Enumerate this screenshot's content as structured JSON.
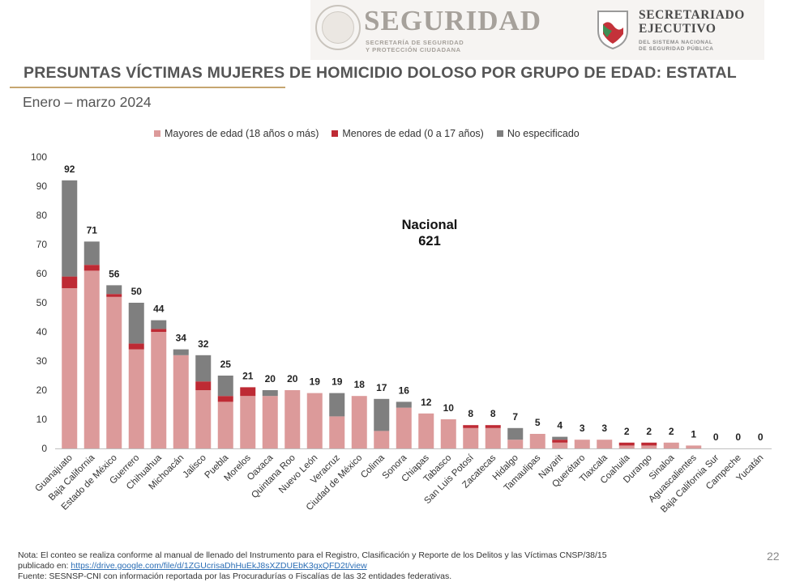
{
  "header": {
    "seguridad_title": "SEGURIDAD",
    "seguridad_sub1": "SECRETARÍA DE SEGURIDAD",
    "seguridad_sub2": "Y PROTECCIÓN CIUDADANA",
    "se_title1": "SECRETARIADO",
    "se_title2": "EJECUTIVO",
    "se_sub1": "DEL SISTEMA NACIONAL",
    "se_sub2": "DE SEGURIDAD PÚBLICA"
  },
  "title": "PRESUNTAS VÍCTIMAS MUJERES DE HOMICIDIO DOLOSO POR GRUPO DE EDAD: ESTATAL",
  "subtitle": "Enero – marzo 2024",
  "nacional": {
    "label": "Nacional",
    "value": "621"
  },
  "colors": {
    "mayores": "#dc9a9a",
    "menores": "#be2a34",
    "no_especificado": "#7f7f7f",
    "accent": "#c6a670"
  },
  "chart_data": {
    "type": "bar",
    "stacked": true,
    "ylim": [
      0,
      100
    ],
    "yticks": [
      0,
      10,
      20,
      30,
      40,
      50,
      60,
      70,
      80,
      90,
      100
    ],
    "legend_position": "top",
    "grid": false,
    "categories": [
      "Guanajuato",
      "Baja California",
      "Estado de México",
      "Guerrero",
      "Chihuahua",
      "Michoacán",
      "Jalisco",
      "Puebla",
      "Morelos",
      "Oaxaca",
      "Quintana Roo",
      "Nuevo León",
      "Veracruz",
      "Ciudad de México",
      "Colima",
      "Sonora",
      "Chiapas",
      "Tabasco",
      "San Luis Potosí",
      "Zacatecas",
      "Hidalgo",
      "Tamaulipas",
      "Nayarit",
      "Querétaro",
      "Tlaxcala",
      "Coahuila",
      "Durango",
      "Sinaloa",
      "Aguascalientes",
      "Baja California Sur",
      "Campeche",
      "Yucatán"
    ],
    "series": [
      {
        "name": "Mayores de edad (18 años o más)",
        "color": "#dc9a9a",
        "values": [
          55,
          61,
          52,
          34,
          40,
          32,
          20,
          16,
          18,
          18,
          20,
          19,
          11,
          18,
          6,
          14,
          12,
          10,
          7,
          7,
          3,
          5,
          2,
          3,
          3,
          1,
          1,
          2,
          1,
          0,
          0,
          0
        ]
      },
      {
        "name": "Menores de edad (0 a 17 años)",
        "color": "#be2a34",
        "values": [
          4,
          2,
          1,
          2,
          1,
          0,
          3,
          2,
          3,
          0,
          0,
          0,
          0,
          0,
          0,
          0,
          0,
          0,
          1,
          1,
          0,
          0,
          1,
          0,
          0,
          1,
          1,
          0,
          0,
          0,
          0,
          0
        ]
      },
      {
        "name": "No especificado",
        "color": "#7f7f7f",
        "values": [
          33,
          8,
          3,
          14,
          3,
          2,
          9,
          7,
          0,
          2,
          0,
          0,
          8,
          0,
          11,
          2,
          0,
          0,
          0,
          0,
          4,
          0,
          1,
          0,
          0,
          0,
          0,
          0,
          0,
          0,
          0,
          0
        ]
      }
    ],
    "totals": [
      92,
      71,
      56,
      50,
      44,
      34,
      32,
      25,
      21,
      20,
      20,
      19,
      19,
      18,
      17,
      16,
      12,
      10,
      8,
      8,
      7,
      5,
      4,
      3,
      3,
      2,
      2,
      2,
      1,
      0,
      0,
      0
    ]
  },
  "footer": {
    "note_line1": "Nota: El conteo se realiza conforme al manual de llenado del Instrumento para el Registro, Clasificación y Reporte de los Delitos y las Víctimas CNSP/38/15",
    "note_prefix": "publicado en: ",
    "note_link": "https://drive.google.com/file/d/1ZGUcrisaDhHuEkJ8sXZDUEbK3gxQFD2t/view",
    "source": "Fuente: SESNSP-CNI con información reportada por las Procuradurías o Fiscalías de las 32 entidades federativas.",
    "page": "22"
  }
}
